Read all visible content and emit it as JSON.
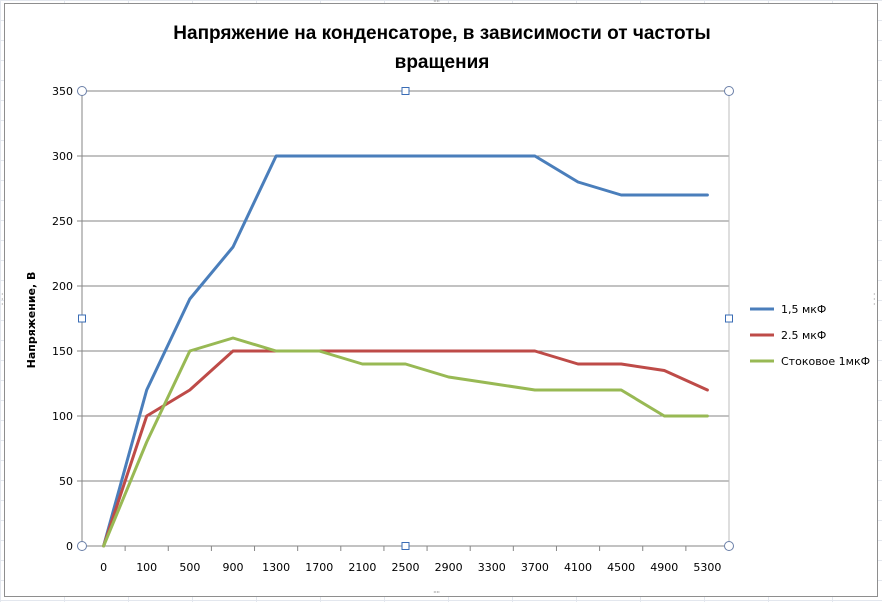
{
  "chart_data": {
    "type": "line",
    "title_lines": [
      "Напряжение на конденсаторе, в зависимости от частоты",
      "вращения"
    ],
    "ylabel": "Напряжение, В",
    "xlabel": "",
    "categories": [
      "0",
      "100",
      "500",
      "900",
      "1300",
      "1700",
      "2100",
      "2500",
      "2900",
      "3300",
      "3700",
      "4100",
      "4500",
      "4900",
      "5300"
    ],
    "ylim": [
      0,
      350
    ],
    "yticks": [
      0,
      50,
      100,
      150,
      200,
      250,
      300,
      350
    ],
    "grid": true,
    "legend_position": "right",
    "series": [
      {
        "name": "1,5 мкФ",
        "color": "#4a7ebb",
        "values": [
          0,
          120,
          190,
          230,
          300,
          300,
          300,
          300,
          300,
          300,
          300,
          280,
          270,
          270,
          270
        ]
      },
      {
        "name": "2.5 мкФ",
        "color": "#be4b48",
        "values": [
          0,
          100,
          120,
          150,
          150,
          150,
          150,
          150,
          150,
          150,
          150,
          140,
          140,
          135,
          120
        ]
      },
      {
        "name": "Стоковое 1мкФ",
        "color": "#98b954",
        "values": [
          0,
          80,
          150,
          160,
          150,
          150,
          140,
          140,
          130,
          125,
          120,
          120,
          120,
          100,
          100
        ]
      }
    ]
  }
}
